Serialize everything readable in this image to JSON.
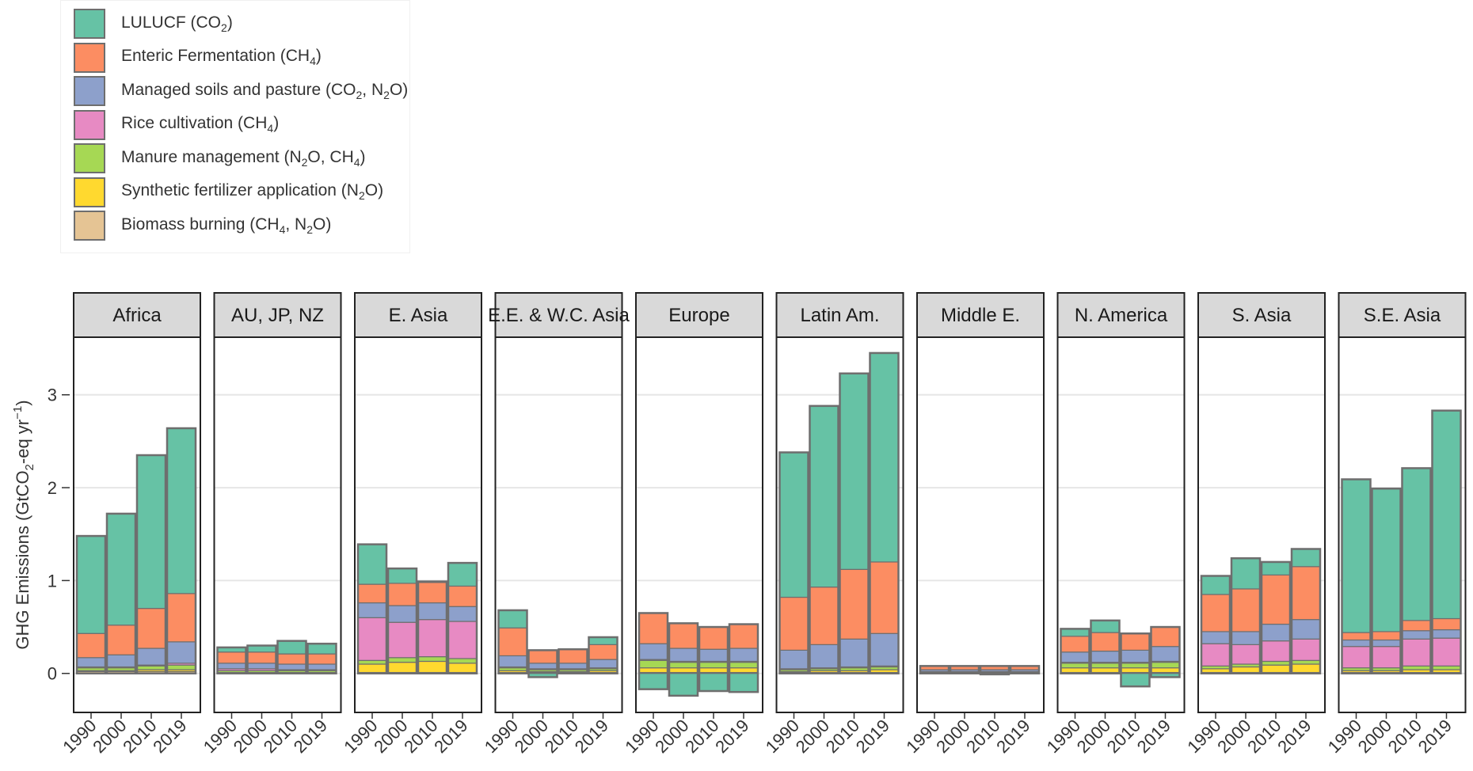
{
  "legend": {
    "items": [
      {
        "key": "lulucf",
        "color": "#66c2a5",
        "base": "LULUCF (CO",
        "sub1": "2",
        "rest1": ")",
        "sub2": "",
        "rest2": ""
      },
      {
        "key": "enteric",
        "color": "#fc8d62",
        "base": "Enteric Fermentation (CH",
        "sub1": "4",
        "rest1": ")",
        "sub2": "",
        "rest2": ""
      },
      {
        "key": "soils",
        "color": "#8da0cb",
        "base": "Managed soils and pasture (CO",
        "sub1": "2",
        "rest1": ", N",
        "sub2": "2",
        "rest2": "O)"
      },
      {
        "key": "rice",
        "color": "#e78ac3",
        "base": "Rice cultivation (CH",
        "sub1": "4",
        "rest1": ")",
        "sub2": "",
        "rest2": ""
      },
      {
        "key": "manure",
        "color": "#a6d854",
        "base": "Manure management (N",
        "sub1": "2",
        "rest1": "O, CH",
        "sub2": "4",
        "rest2": ")"
      },
      {
        "key": "fertilizer",
        "color": "#ffd92f",
        "base": "Synthetic fertilizer application (N",
        "sub1": "2",
        "rest1": "O)",
        "sub2": "",
        "rest2": ""
      },
      {
        "key": "biomass",
        "color": "#e5c494",
        "base": "Biomass burning (CH",
        "sub1": "4",
        "rest1": ", N",
        "sub2": "2",
        "rest2": "O)"
      }
    ]
  },
  "chart_data": {
    "type": "bar",
    "stacked": true,
    "faceted": true,
    "ylabel": "GHG Emissions (GtCO2-eq yr⁻¹)",
    "ylabel_parts": {
      "pre": "GHG Emissions (GtCO",
      "sub": "2",
      "mid": "-eq yr",
      "sup": "−1",
      "post": ")"
    },
    "ylim": [
      -0.42,
      3.62
    ],
    "yticks": [
      0,
      1,
      2,
      3
    ],
    "grid": true,
    "x_categories": [
      "1990",
      "2000",
      "2010",
      "2019"
    ],
    "positive_stack_order": [
      "biomass",
      "fertilizer",
      "manure",
      "rice",
      "soils",
      "enteric",
      "lulucf"
    ],
    "series_colors": {
      "lulucf": "#66c2a5",
      "enteric": "#fc8d62",
      "soils": "#8da0cb",
      "rice": "#e78ac3",
      "manure": "#a6d854",
      "fertilizer": "#ffd92f",
      "biomass": "#e5c494"
    },
    "panels": [
      {
        "region": "Africa",
        "values": {
          "biomass": [
            0.02,
            0.02,
            0.02,
            0.02
          ],
          "fertilizer": [
            0.01,
            0.01,
            0.02,
            0.02
          ],
          "manure": [
            0.03,
            0.03,
            0.04,
            0.05
          ],
          "rice": [
            0.01,
            0.01,
            0.01,
            0.02
          ],
          "soils": [
            0.1,
            0.13,
            0.18,
            0.23
          ],
          "enteric": [
            0.26,
            0.32,
            0.43,
            0.52
          ],
          "lulucf": [
            1.05,
            1.2,
            1.65,
            1.78
          ]
        }
      },
      {
        "region": "AU, JP, NZ",
        "values": {
          "biomass": [
            0.0,
            0.0,
            0.0,
            0.0
          ],
          "fertilizer": [
            0.01,
            0.01,
            0.01,
            0.01
          ],
          "manure": [
            0.02,
            0.02,
            0.02,
            0.02
          ],
          "rice": [
            0.02,
            0.02,
            0.01,
            0.01
          ],
          "soils": [
            0.06,
            0.06,
            0.06,
            0.06
          ],
          "enteric": [
            0.12,
            0.12,
            0.11,
            0.11
          ],
          "lulucf": [
            0.05,
            0.07,
            0.14,
            0.11
          ]
        }
      },
      {
        "region": "E. Asia",
        "values": {
          "biomass": [
            0.01,
            0.01,
            0.01,
            0.01
          ],
          "fertilizer": [
            0.09,
            0.11,
            0.12,
            0.1
          ],
          "manure": [
            0.04,
            0.05,
            0.05,
            0.05
          ],
          "rice": [
            0.46,
            0.38,
            0.4,
            0.4
          ],
          "soils": [
            0.16,
            0.18,
            0.18,
            0.16
          ],
          "enteric": [
            0.2,
            0.24,
            0.22,
            0.22
          ],
          "lulucf": [
            0.43,
            0.16,
            0.01,
            0.25
          ]
        }
      },
      {
        "region": "E.E. & W.C. Asia",
        "values": {
          "biomass": [
            0.01,
            0.01,
            0.01,
            0.01
          ],
          "fertilizer": [
            0.02,
            0.01,
            0.01,
            0.02
          ],
          "manure": [
            0.03,
            0.02,
            0.02,
            0.02
          ],
          "rice": [
            0.01,
            0.01,
            0.01,
            0.01
          ],
          "soils": [
            0.12,
            0.06,
            0.06,
            0.09
          ],
          "enteric": [
            0.3,
            0.14,
            0.15,
            0.16
          ],
          "lulucf": [
            0.19,
            -0.04,
            0.0,
            0.08
          ]
        }
      },
      {
        "region": "Europe",
        "values": {
          "biomass": [
            0.01,
            0.01,
            0.01,
            0.01
          ],
          "fertilizer": [
            0.05,
            0.05,
            0.05,
            0.05
          ],
          "manure": [
            0.08,
            0.06,
            0.06,
            0.06
          ],
          "rice": [
            0.01,
            0.01,
            0.01,
            0.01
          ],
          "soils": [
            0.17,
            0.14,
            0.13,
            0.14
          ],
          "enteric": [
            0.33,
            0.27,
            0.24,
            0.26
          ],
          "lulucf": [
            -0.17,
            -0.24,
            -0.19,
            -0.2
          ]
        }
      },
      {
        "region": "Latin Am.",
        "values": {
          "biomass": [
            0.01,
            0.01,
            0.01,
            0.01
          ],
          "fertilizer": [
            0.01,
            0.02,
            0.02,
            0.03
          ],
          "manure": [
            0.02,
            0.02,
            0.03,
            0.03
          ],
          "rice": [
            0.01,
            0.01,
            0.01,
            0.01
          ],
          "soils": [
            0.2,
            0.25,
            0.3,
            0.35
          ],
          "enteric": [
            0.57,
            0.62,
            0.75,
            0.77
          ],
          "lulucf": [
            1.56,
            1.95,
            2.11,
            2.25
          ]
        }
      },
      {
        "region": "Middle E.",
        "values": {
          "biomass": [
            0.0,
            0.0,
            0.0,
            0.0
          ],
          "fertilizer": [
            0.01,
            0.01,
            0.01,
            0.01
          ],
          "manure": [
            0.01,
            0.01,
            0.01,
            0.01
          ],
          "rice": [
            0.0,
            0.0,
            0.0,
            0.0
          ],
          "soils": [
            0.02,
            0.02,
            0.02,
            0.02
          ],
          "enteric": [
            0.04,
            0.04,
            0.04,
            0.04
          ],
          "lulucf": [
            0.0,
            0.0,
            -0.01,
            0.0
          ]
        }
      },
      {
        "region": "N. America",
        "values": {
          "biomass": [
            0.01,
            0.01,
            0.01,
            0.01
          ],
          "fertilizer": [
            0.05,
            0.05,
            0.05,
            0.05
          ],
          "manure": [
            0.05,
            0.05,
            0.05,
            0.06
          ],
          "rice": [
            0.01,
            0.01,
            0.01,
            0.01
          ],
          "soils": [
            0.11,
            0.12,
            0.13,
            0.16
          ],
          "enteric": [
            0.17,
            0.2,
            0.18,
            0.21
          ],
          "lulucf": [
            0.08,
            0.13,
            -0.14,
            -0.04
          ]
        }
      },
      {
        "region": "S. Asia",
        "values": {
          "biomass": [
            0.01,
            0.01,
            0.01,
            0.01
          ],
          "fertilizer": [
            0.04,
            0.06,
            0.08,
            0.09
          ],
          "manure": [
            0.03,
            0.03,
            0.04,
            0.04
          ],
          "rice": [
            0.24,
            0.21,
            0.22,
            0.23
          ],
          "soils": [
            0.13,
            0.14,
            0.18,
            0.21
          ],
          "enteric": [
            0.4,
            0.46,
            0.53,
            0.57
          ],
          "lulucf": [
            0.2,
            0.33,
            0.14,
            0.19
          ]
        }
      },
      {
        "region": "S.E. Asia",
        "values": {
          "biomass": [
            0.01,
            0.01,
            0.01,
            0.01
          ],
          "fertilizer": [
            0.02,
            0.02,
            0.03,
            0.03
          ],
          "manure": [
            0.03,
            0.03,
            0.04,
            0.04
          ],
          "rice": [
            0.23,
            0.23,
            0.29,
            0.3
          ],
          "soils": [
            0.07,
            0.07,
            0.09,
            0.09
          ],
          "enteric": [
            0.08,
            0.09,
            0.11,
            0.12
          ],
          "lulucf": [
            1.65,
            1.54,
            1.64,
            2.24
          ]
        }
      }
    ]
  }
}
